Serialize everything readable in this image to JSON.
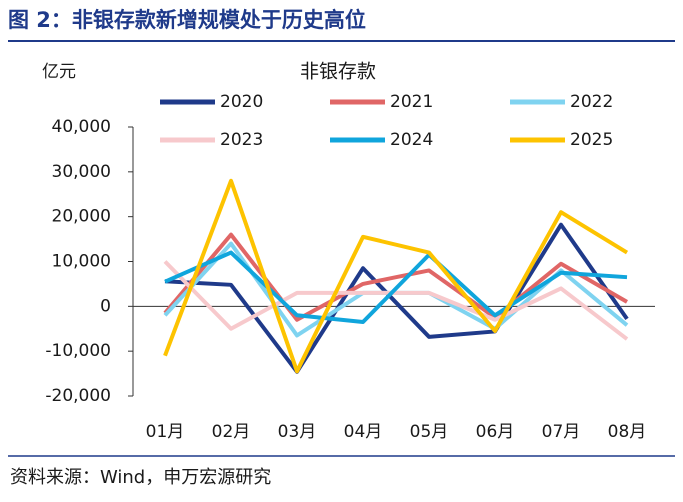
{
  "header": {
    "title": "图 2：非银存款新增规模处于历史高位"
  },
  "chart_data": {
    "type": "line",
    "title": "非银存款",
    "y_label": "亿元",
    "categories": [
      "01月",
      "02月",
      "03月",
      "04月",
      "05月",
      "06月",
      "07月",
      "08月"
    ],
    "series": [
      {
        "name": "2020",
        "color": "#1f3a8a",
        "values": [
          5600,
          4800,
          -14600,
          8500,
          -6800,
          -5600,
          18200,
          -2800
        ]
      },
      {
        "name": "2021",
        "color": "#e06666",
        "values": [
          -1500,
          16000,
          -3000,
          5000,
          8000,
          -2500,
          9500,
          1000
        ]
      },
      {
        "name": "2022",
        "color": "#7fd3f0",
        "values": [
          -2000,
          14000,
          -6500,
          3000,
          3000,
          -5000,
          8000,
          -4200
        ]
      },
      {
        "name": "2023",
        "color": "#f7c9cc",
        "values": [
          10000,
          -5000,
          3000,
          3000,
          3000,
          -3000,
          4000,
          -7300
        ]
      },
      {
        "name": "2024",
        "color": "#10a5dc",
        "values": [
          5500,
          12000,
          -2000,
          -3500,
          11500,
          -2000,
          7500,
          6500
        ]
      },
      {
        "name": "2025",
        "color": "#fdc300",
        "values": [
          -11000,
          28000,
          -14500,
          15500,
          12000,
          -5500,
          21000,
          12000
        ]
      }
    ],
    "ylim": [
      -20000,
      40000
    ],
    "yticks": [
      {
        "value": -20000,
        "label": "-20,000"
      },
      {
        "value": -10000,
        "label": "-10,000"
      },
      0,
      {
        "value": 10000,
        "label": "10,000"
      },
      {
        "value": 20000,
        "label": "20,000"
      },
      {
        "value": 30000,
        "label": "30,000"
      },
      {
        "value": 40000,
        "label": "40,000"
      }
    ],
    "grid": false
  },
  "footer": {
    "source": "资料来源：Wind，申万宏源研究"
  }
}
